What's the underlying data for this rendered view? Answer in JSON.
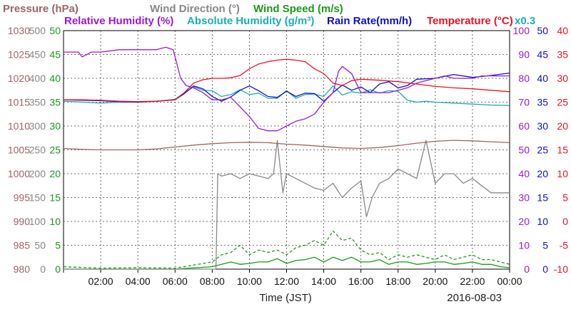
{
  "chart_data": {
    "type": "line",
    "xlabel": "Time (JST)",
    "date_label": "2016-08-03",
    "x_ticks": [
      "02:00",
      "04:00",
      "06:00",
      "08:00",
      "10:00",
      "12:00",
      "14:00",
      "16:00",
      "18:00",
      "20:00",
      "22:00",
      "00:00"
    ],
    "x_range_hours": [
      0,
      24
    ],
    "grid": true,
    "legend": {
      "line1": [
        {
          "text": "Pressure (hPa)",
          "color": "#a06464"
        },
        {
          "text": "Wind Direction (°)",
          "color": "#888888"
        },
        {
          "text": "Wind Speed (m/s)",
          "color": "#1a9a1a"
        }
      ],
      "line2": [
        {
          "text": "Relative Humidity (%)",
          "color": "#9b1ad6"
        },
        {
          "text": "Absolute Humidity (g/m³)",
          "color": "#1ab0b0"
        },
        {
          "text": "Rain Rate(mm/h)",
          "color": "#1010cc"
        },
        {
          "text": "Temperature (°C)",
          "color": "#ee1122"
        },
        {
          "text": "x0.3",
          "color": "#1ab0b0"
        }
      ]
    },
    "axes": {
      "pressure": {
        "color": "#a06464",
        "ticks": [
          "1030",
          "1025",
          "1020",
          "1015",
          "1010",
          "1005",
          "1000",
          "995",
          "990",
          "985",
          "980"
        ],
        "range": [
          980,
          1030
        ]
      },
      "wind_direction": {
        "color": "#888888",
        "ticks": [
          "500",
          "450",
          "400",
          "350",
          "300",
          "250",
          "200",
          "150",
          "100",
          "50",
          "0"
        ],
        "range": [
          0,
          500
        ]
      },
      "wind_speed": {
        "color": "#1a9a1a",
        "ticks": [
          "50",
          "45",
          "40",
          "35",
          "30",
          "25",
          "20",
          "15",
          "10",
          "5",
          "0"
        ],
        "range": [
          0,
          50
        ]
      },
      "humidity": {
        "color": "#9b1ad6",
        "ticks": [
          "100",
          "90",
          "80",
          "70",
          "60",
          "50",
          "40",
          "30",
          "20",
          "10",
          "0"
        ],
        "range": [
          0,
          100
        ]
      },
      "rain": {
        "color": "#1010cc",
        "ticks": [
          "50",
          "45",
          "40",
          "35",
          "30",
          "25",
          "20",
          "15",
          "10",
          "5",
          "0"
        ],
        "range": [
          0,
          50
        ]
      },
      "temperature": {
        "color": "#ee1122",
        "ticks": [
          "40",
          "35",
          "30",
          "25",
          "20",
          "15",
          "10",
          "5",
          "0",
          "-5",
          "-10"
        ],
        "range": [
          -10,
          40
        ]
      }
    },
    "series": [
      {
        "name": "Relative Humidity (%)",
        "color": "#9b1ad6",
        "axis": "humidity",
        "x": [
          0,
          0.8,
          1.0,
          1.5,
          2.0,
          3.0,
          4.0,
          5.0,
          5.5,
          5.9,
          6.0,
          6.3,
          6.6,
          7.0,
          7.5,
          8.0,
          8.5,
          9.0,
          9.5,
          10.0,
          10.5,
          11.0,
          11.5,
          12.0,
          12.5,
          13.0,
          13.5,
          14.0,
          14.5,
          14.8,
          15.0,
          15.5,
          16.0,
          16.5,
          17.0,
          17.5,
          18.0,
          18.5,
          19.0,
          19.5,
          20.0,
          20.5,
          21.0,
          21.5,
          22.0,
          22.5,
          23.0,
          23.5,
          24.0
        ],
        "y": [
          91,
          91,
          89,
          91,
          91,
          92,
          92,
          92,
          93,
          92,
          89,
          80,
          77,
          76,
          74,
          71,
          71,
          72,
          68,
          64,
          59,
          58,
          58,
          60,
          62,
          63,
          65,
          70,
          74,
          83,
          85,
          82,
          74,
          74,
          74,
          74,
          75,
          76,
          78,
          79,
          80,
          81,
          80,
          80,
          80,
          81,
          81,
          81,
          81
        ]
      },
      {
        "name": "Temperature (°C)",
        "color": "#ee1122",
        "axis": "temperature",
        "x": [
          0,
          1,
          2,
          3,
          4,
          5,
          6,
          6.5,
          7,
          7.5,
          8,
          8.5,
          9,
          9.5,
          10,
          10.5,
          11,
          11.5,
          12,
          12.5,
          13,
          13.5,
          14,
          14.5,
          15,
          15.5,
          16,
          17,
          18,
          19,
          20,
          21,
          22,
          23,
          24
        ],
        "y": [
          25.5,
          25.5,
          25.4,
          25.2,
          25.1,
          25.2,
          25.5,
          27,
          29,
          29.7,
          30,
          30,
          30.1,
          30.6,
          32,
          33,
          33.5,
          33.8,
          34,
          33.8,
          33.5,
          32,
          31,
          29,
          28.5,
          29.5,
          29.8,
          29.6,
          29.3,
          28.8,
          28.3,
          28,
          27.8,
          27.5,
          27.2
        ]
      },
      {
        "name": "Absolute Humidity (g/m³)",
        "color": "#1ab0b0",
        "axis": "rain",
        "x": [
          0,
          1,
          2,
          3,
          4,
          5,
          6,
          6.5,
          7,
          7.5,
          8,
          8.5,
          9,
          9.5,
          10,
          10.5,
          11,
          11.5,
          12,
          12.5,
          13,
          13.5,
          14,
          14.5,
          15,
          15.5,
          16,
          16.5,
          17,
          17.5,
          18,
          18.5,
          19,
          19.5,
          20,
          21,
          22,
          23,
          24
        ],
        "y": [
          35.2,
          35.0,
          34.8,
          35.0,
          35.0,
          35.2,
          35.6,
          37,
          38.2,
          37.5,
          37.4,
          36.2,
          36.6,
          37.6,
          36.6,
          36.9,
          35.8,
          35.8,
          37.4,
          35.8,
          36.6,
          36.7,
          36.2,
          38.4,
          36.5,
          37.2,
          36.9,
          37.6,
          36.9,
          37.4,
          37.3,
          35.4,
          35.0,
          35.2,
          35.0,
          34.8,
          34.6,
          34.4,
          34.3
        ]
      },
      {
        "name": "Rain Rate(mm/h)",
        "color": "#1010cc",
        "axis": "rain",
        "x": [
          0,
          1,
          2,
          3,
          4,
          5,
          6,
          6.5,
          7,
          7.5,
          8,
          8.5,
          9,
          9.5,
          10,
          10.5,
          11,
          11.5,
          12,
          12.5,
          13,
          13.5,
          14,
          14.5,
          15,
          15.5,
          16,
          16.5,
          17,
          17.5,
          18,
          18.5,
          19,
          20,
          21,
          22,
          23,
          24
        ],
        "y": [
          35.5,
          35.4,
          35.3,
          35.1,
          35,
          35.2,
          35.5,
          36.8,
          38.4,
          37.8,
          36.2,
          35.2,
          36.1,
          37.5,
          38.4,
          37.4,
          36.2,
          36.0,
          37.3,
          36.2,
          36.9,
          36.8,
          35.2,
          37.0,
          38.6,
          37.5,
          38.2,
          37.0,
          38.8,
          39.3,
          38.0,
          38.5,
          39.8,
          40.0,
          40.8,
          40.2,
          40.6,
          41.1
        ]
      },
      {
        "name": "Pressure (hPa)",
        "color": "#a06464",
        "axis": "pressure",
        "x": [
          0,
          1,
          2,
          3,
          4,
          5,
          6,
          7,
          8,
          9,
          10,
          11,
          12,
          13,
          14,
          15,
          16,
          17,
          18,
          19,
          20,
          21,
          22,
          23,
          24
        ],
        "y": [
          1005.3,
          1005.1,
          1005,
          1005,
          1005,
          1005.2,
          1005.6,
          1006,
          1006.3,
          1006.5,
          1006.6,
          1006.5,
          1006.2,
          1006,
          1005.7,
          1005.4,
          1005.3,
          1005.5,
          1005.9,
          1006.4,
          1006.8,
          1007,
          1006.9,
          1006.7,
          1006.5
        ]
      },
      {
        "name": "Wind Direction (°)",
        "color": "#888888",
        "axis": "wind_direction",
        "x": [
          0,
          8.2,
          8.3,
          8.5,
          9.0,
          9.5,
          10.0,
          10.5,
          11.0,
          11.3,
          11.5,
          11.8,
          12.0,
          12.5,
          13.0,
          13.5,
          14.0,
          14.5,
          15.0,
          15.5,
          16.0,
          16.3,
          16.6,
          17.0,
          17.5,
          18.0,
          18.5,
          19.0,
          19.5,
          20.0,
          20.5,
          21.0,
          21.5,
          22.0,
          22.5,
          23.0,
          23.5,
          24.0
        ],
        "y": [
          0,
          0,
          200,
          195,
          200,
          190,
          200,
          195,
          190,
          200,
          270,
          160,
          200,
          190,
          180,
          170,
          165,
          180,
          150,
          170,
          185,
          110,
          150,
          180,
          190,
          210,
          200,
          190,
          270,
          180,
          200,
          200,
          180,
          190,
          175,
          160,
          160,
          160
        ]
      },
      {
        "name": "Wind Speed (m/s)",
        "color": "#1a9a1a",
        "axis": "wind_speed",
        "x": [
          0,
          2,
          4,
          6,
          8,
          8.5,
          9,
          9.5,
          10,
          10.5,
          11,
          11.5,
          12,
          12.5,
          13,
          13.5,
          14,
          14.5,
          15,
          15.5,
          16,
          16.5,
          17,
          17.5,
          18,
          18.5,
          19,
          19.5,
          20,
          20.5,
          21,
          21.5,
          22,
          22.5,
          23,
          23.5,
          24
        ],
        "y": [
          0,
          0,
          0,
          0,
          0.5,
          1,
          1.5,
          1,
          1.2,
          1.5,
          1.5,
          2.2,
          1.2,
          1.8,
          2,
          2.5,
          1.5,
          2.5,
          1.8,
          2.5,
          1.5,
          1.5,
          2,
          1,
          1.5,
          1.5,
          1,
          1.2,
          1.5,
          1.5,
          1,
          1.2,
          1.5,
          1,
          1,
          0.5,
          0.3
        ]
      },
      {
        "name": "Wind Speed (m/s)",
        "color": "#1a9a1a",
        "axis": "wind_speed",
        "style": "dashed",
        "x": [
          0,
          2,
          4,
          6,
          8,
          8.5,
          9,
          9.5,
          10,
          10.5,
          11,
          11.5,
          12,
          12.5,
          13,
          13.5,
          14,
          14.5,
          15,
          15.5,
          16,
          16.5,
          17,
          17.5,
          18,
          18.5,
          19,
          19.5,
          20,
          20.5,
          21,
          21.5,
          22,
          22.5,
          23,
          23.5,
          24
        ],
        "y": [
          0.5,
          0.2,
          0.3,
          0.2,
          1.5,
          3,
          3.5,
          5,
          3,
          4,
          3.5,
          4,
          3,
          4.5,
          5,
          6,
          5,
          8,
          6,
          6.5,
          4,
          3,
          3.5,
          2,
          3,
          2.5,
          3,
          2.5,
          2,
          3,
          2,
          2.5,
          3,
          2,
          2,
          1.5,
          1
        ]
      }
    ]
  }
}
